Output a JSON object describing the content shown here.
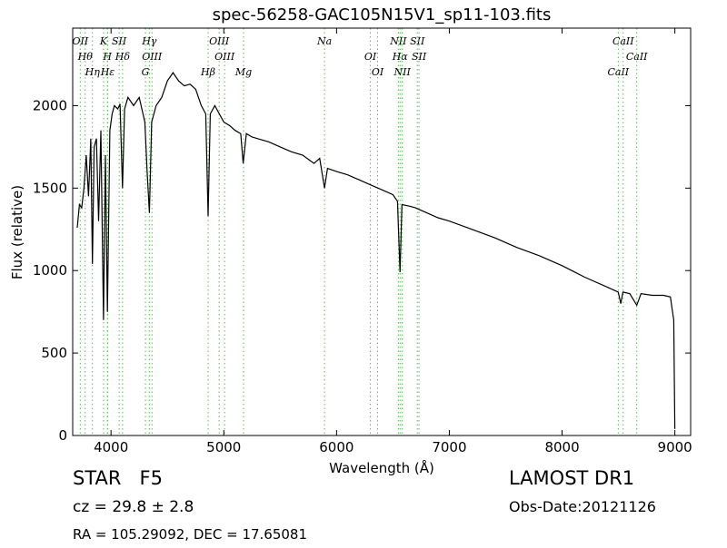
{
  "chart_data": {
    "type": "line",
    "title": "spec-56258-GAC105N15V1_sp11-103.fits",
    "xlabel": "Wavelength (Å)",
    "ylabel": "Flux (relative)",
    "xlim": [
      3660,
      9140
    ],
    "ylim": [
      0,
      2470
    ],
    "xticks": [
      4000,
      5000,
      6000,
      7000,
      8000,
      9000
    ],
    "yticks": [
      0,
      500,
      1000,
      1500,
      2000
    ],
    "series": [
      {
        "color": "#000000",
        "x": [
          3700,
          3720,
          3740,
          3760,
          3780,
          3800,
          3820,
          3835,
          3850,
          3870,
          3890,
          3910,
          3933,
          3950,
          3968,
          3990,
          4010,
          4030,
          4060,
          4080,
          4102,
          4120,
          4150,
          4200,
          4250,
          4300,
          4320,
          4340,
          4360,
          4400,
          4450,
          4500,
          4550,
          4600,
          4650,
          4700,
          4750,
          4800,
          4840,
          4861,
          4880,
          4920,
          4960,
          5000,
          5050,
          5100,
          5150,
          5172,
          5200,
          5250,
          5300,
          5400,
          5500,
          5600,
          5700,
          5800,
          5850,
          5893,
          5920,
          6000,
          6100,
          6200,
          6300,
          6400,
          6500,
          6540,
          6563,
          6580,
          6650,
          6700,
          6800,
          6900,
          7000,
          7200,
          7400,
          7600,
          7800,
          8000,
          8200,
          8400,
          8498,
          8520,
          8540,
          8600,
          8662,
          8700,
          8800,
          8900,
          8960,
          8990,
          9000
        ],
        "values": [
          1260,
          1400,
          1380,
          1500,
          1700,
          1450,
          1800,
          1040,
          1750,
          1800,
          1300,
          1850,
          700,
          1700,
          750,
          1850,
          1950,
          2000,
          1980,
          2010,
          1500,
          1980,
          2050,
          2000,
          2050,
          1900,
          1600,
          1350,
          1900,
          2000,
          2050,
          2150,
          2200,
          2150,
          2120,
          2130,
          2100,
          2000,
          1950,
          1330,
          1950,
          2000,
          1950,
          1900,
          1880,
          1850,
          1830,
          1650,
          1830,
          1810,
          1800,
          1780,
          1750,
          1720,
          1700,
          1650,
          1680,
          1500,
          1620,
          1600,
          1580,
          1550,
          1520,
          1490,
          1460,
          1420,
          990,
          1400,
          1390,
          1380,
          1350,
          1320,
          1300,
          1250,
          1200,
          1140,
          1090,
          1030,
          960,
          900,
          870,
          800,
          870,
          860,
          790,
          860,
          850,
          850,
          840,
          700,
          40
        ]
      }
    ],
    "line_markers": {
      "color": "#55bb55",
      "lines": [
        {
          "label": "OII",
          "x": 3727
        },
        {
          "label": "Hθ",
          "x": 3771
        },
        {
          "label": "Hη",
          "x": 3835
        },
        {
          "label": "K",
          "x": 3934
        },
        {
          "label": "H",
          "x": 3968
        },
        {
          "label": "Hε",
          "x": 3970
        },
        {
          "label": "SII",
          "x": 4072
        },
        {
          "label": "Hδ",
          "x": 4102
        },
        {
          "label": "G",
          "x": 4305
        },
        {
          "label": "Hγ",
          "x": 4340
        },
        {
          "label": "OIII",
          "x": 4363
        },
        {
          "label": "Hβ",
          "x": 4861
        },
        {
          "label": "OIII",
          "x": 4959
        },
        {
          "label": "OIII",
          "x": 5007
        },
        {
          "label": "Mg",
          "x": 5175
        },
        {
          "label": "Na",
          "x": 5893
        },
        {
          "label": "OI",
          "x": 6300
        },
        {
          "label": "OI",
          "x": 6364
        },
        {
          "label": "NII",
          "x": 6548
        },
        {
          "label": "Hα",
          "x": 6563
        },
        {
          "label": "NII",
          "x": 6583
        },
        {
          "label": "SII",
          "x": 6716
        },
        {
          "label": "SII",
          "x": 6731
        },
        {
          "label": "CaII",
          "x": 8498
        },
        {
          "label": "CaII",
          "x": 8542
        },
        {
          "label": "CaII",
          "x": 8662
        }
      ]
    },
    "info": {
      "class": "STAR   F5",
      "cz": "cz = 29.8 ± 2.8",
      "coords": "RA = 105.29092, DEC = 17.65081",
      "release": "LAMOST DR1",
      "date": "Obs-Date:20121126"
    }
  }
}
